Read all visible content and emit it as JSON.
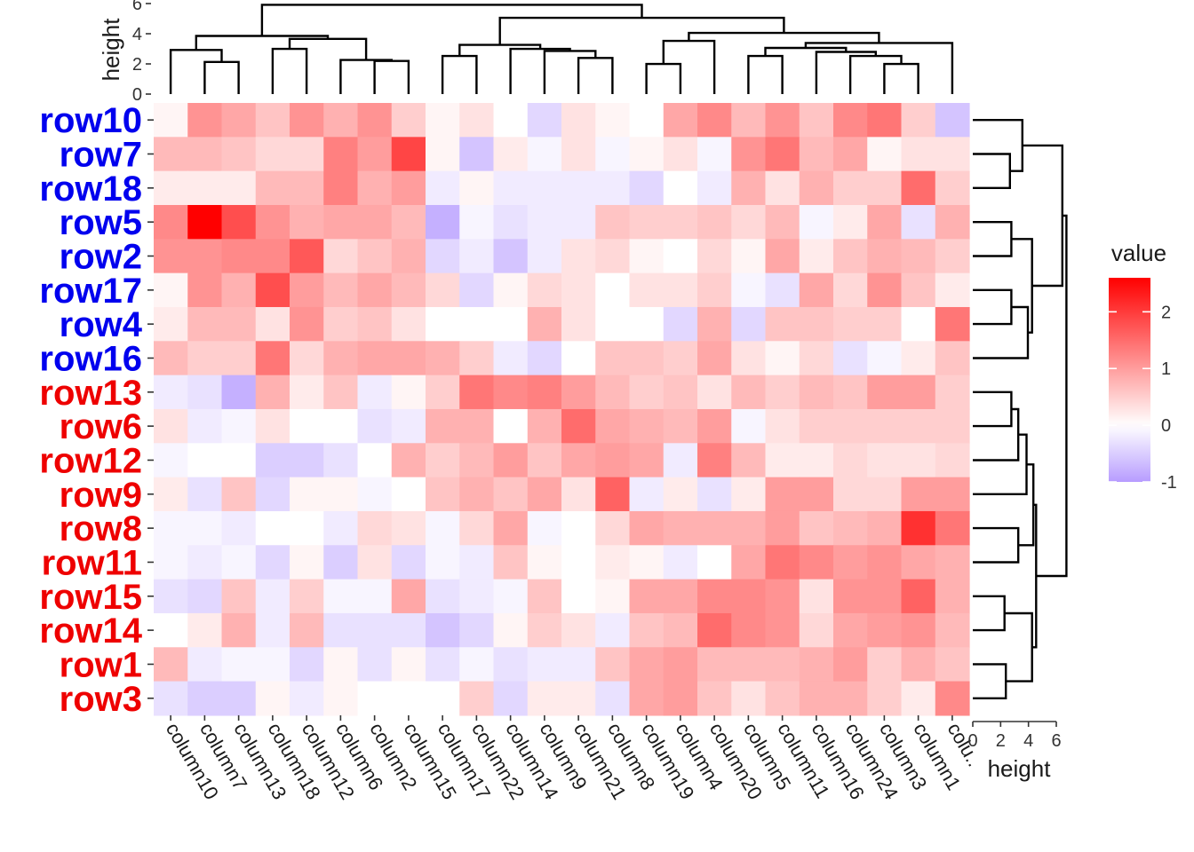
{
  "chart_data": {
    "type": "heatmap",
    "columns": [
      "column10",
      "column7",
      "column13",
      "column18",
      "column12",
      "column6",
      "column2",
      "column15",
      "column17",
      "column22",
      "column14",
      "column9",
      "column21",
      "column8",
      "column19",
      "column4",
      "column20",
      "column5",
      "column11",
      "column16",
      "column24",
      "column3",
      "column1",
      "colu.."
    ],
    "rows": [
      {
        "label": "row10",
        "group": "blue"
      },
      {
        "label": "row7",
        "group": "blue"
      },
      {
        "label": "row18",
        "group": "blue"
      },
      {
        "label": "row5",
        "group": "blue"
      },
      {
        "label": "row2",
        "group": "blue"
      },
      {
        "label": "row17",
        "group": "blue"
      },
      {
        "label": "row4",
        "group": "blue"
      },
      {
        "label": "row16",
        "group": "blue"
      },
      {
        "label": "row13",
        "group": "red"
      },
      {
        "label": "row6",
        "group": "red"
      },
      {
        "label": "row12",
        "group": "red"
      },
      {
        "label": "row9",
        "group": "red"
      },
      {
        "label": "row8",
        "group": "red"
      },
      {
        "label": "row11",
        "group": "red"
      },
      {
        "label": "row15",
        "group": "red"
      },
      {
        "label": "row14",
        "group": "red"
      },
      {
        "label": "row1",
        "group": "red"
      },
      {
        "label": "row3",
        "group": "red"
      }
    ],
    "values": [
      [
        0.1,
        1.1,
        0.9,
        0.6,
        1.1,
        0.8,
        1.1,
        0.5,
        0.1,
        0.3,
        0.0,
        -0.4,
        0.3,
        0.1,
        0.0,
        0.9,
        1.2,
        0.7,
        1.1,
        0.6,
        1.2,
        1.4,
        0.5,
        -0.6
      ],
      [
        0.7,
        0.7,
        0.6,
        0.4,
        0.4,
        1.3,
        1.0,
        1.9,
        0.1,
        -0.6,
        0.2,
        -0.1,
        0.3,
        -0.1,
        0.1,
        0.3,
        -0.1,
        1.1,
        1.4,
        0.7,
        0.9,
        0.1,
        0.3,
        0.3
      ],
      [
        0.2,
        0.2,
        0.2,
        0.7,
        0.7,
        1.3,
        0.8,
        1.0,
        -0.2,
        0.1,
        -0.2,
        -0.2,
        -0.2,
        -0.2,
        -0.4,
        0.0,
        -0.2,
        0.8,
        0.3,
        0.8,
        0.5,
        0.5,
        1.5,
        0.5
      ],
      [
        1.2,
        2.6,
        1.8,
        1.1,
        0.8,
        0.9,
        0.9,
        0.7,
        -0.8,
        -0.1,
        -0.3,
        -0.2,
        -0.2,
        0.6,
        0.5,
        0.5,
        0.6,
        0.4,
        0.7,
        -0.1,
        0.2,
        0.9,
        -0.3,
        0.8
      ],
      [
        1.1,
        1.1,
        1.2,
        1.2,
        1.7,
        0.4,
        0.6,
        0.8,
        -0.4,
        -0.2,
        -0.6,
        -0.2,
        0.3,
        0.4,
        0.1,
        0.0,
        0.4,
        0.1,
        0.9,
        0.2,
        0.6,
        0.8,
        0.7,
        0.5
      ],
      [
        0.1,
        1.1,
        0.8,
        1.8,
        1.0,
        0.7,
        0.9,
        0.7,
        0.4,
        -0.4,
        0.1,
        0.4,
        0.3,
        0.0,
        0.3,
        0.3,
        0.5,
        -0.1,
        -0.3,
        0.9,
        0.4,
        1.1,
        0.6,
        0.2
      ],
      [
        0.2,
        0.7,
        0.7,
        0.3,
        1.1,
        0.5,
        0.6,
        0.3,
        0.0,
        0.0,
        0.0,
        0.8,
        0.3,
        0.0,
        0.0,
        -0.4,
        0.8,
        -0.4,
        0.6,
        0.6,
        0.5,
        0.5,
        0.0,
        1.4
      ],
      [
        0.7,
        0.5,
        0.5,
        1.4,
        0.4,
        0.8,
        0.9,
        0.9,
        0.8,
        0.5,
        -0.2,
        -0.4,
        0.0,
        0.6,
        0.6,
        0.5,
        0.9,
        0.3,
        0.1,
        0.4,
        -0.3,
        -0.1,
        0.2,
        0.6
      ],
      [
        -0.2,
        -0.3,
        -0.8,
        0.8,
        0.2,
        0.6,
        -0.2,
        0.1,
        0.5,
        1.4,
        1.2,
        1.3,
        1.0,
        0.7,
        0.5,
        0.6,
        0.3,
        0.7,
        0.5,
        0.7,
        0.6,
        1.0,
        1.0,
        0.5
      ],
      [
        0.3,
        -0.2,
        -0.1,
        0.3,
        0.0,
        0.0,
        -0.3,
        -0.2,
        0.8,
        0.8,
        0.0,
        0.8,
        1.5,
        0.9,
        0.8,
        0.7,
        1.0,
        -0.1,
        0.3,
        0.5,
        0.5,
        0.5,
        0.5,
        0.5
      ],
      [
        -0.1,
        0.0,
        0.0,
        -0.5,
        -0.5,
        -0.3,
        0.0,
        0.8,
        0.5,
        0.7,
        1.0,
        0.6,
        0.9,
        1.0,
        0.9,
        -0.2,
        1.3,
        0.7,
        0.2,
        0.2,
        0.4,
        0.3,
        0.3,
        0.4
      ],
      [
        0.2,
        -0.3,
        0.6,
        -0.4,
        0.1,
        0.1,
        -0.1,
        0.0,
        0.6,
        0.8,
        0.6,
        0.9,
        0.3,
        1.6,
        -0.2,
        0.2,
        -0.3,
        0.2,
        1.0,
        1.0,
        0.4,
        0.4,
        1.0,
        1.0
      ],
      [
        -0.1,
        -0.1,
        -0.2,
        0.0,
        0.0,
        -0.2,
        0.4,
        0.3,
        -0.1,
        0.4,
        0.9,
        -0.1,
        0.0,
        0.4,
        0.9,
        0.8,
        0.8,
        0.8,
        1.0,
        0.6,
        0.7,
        0.8,
        2.1,
        1.4
      ],
      [
        -0.1,
        -0.2,
        -0.1,
        -0.4,
        0.1,
        -0.5,
        0.3,
        -0.4,
        -0.1,
        -0.2,
        0.6,
        0.1,
        0.0,
        0.2,
        0.1,
        -0.2,
        0.0,
        0.9,
        1.4,
        1.2,
        1.0,
        1.1,
        0.9,
        0.8
      ],
      [
        -0.3,
        -0.4,
        0.6,
        -0.2,
        0.5,
        -0.1,
        -0.1,
        0.9,
        -0.3,
        -0.2,
        -0.1,
        0.6,
        0.0,
        0.1,
        0.9,
        0.9,
        1.2,
        1.2,
        1.1,
        0.3,
        1.1,
        1.1,
        1.6,
        0.8
      ],
      [
        0.0,
        0.2,
        0.8,
        -0.2,
        0.7,
        -0.3,
        -0.3,
        -0.3,
        -0.6,
        -0.4,
        0.1,
        0.5,
        0.3,
        -0.2,
        0.6,
        0.7,
        1.5,
        1.2,
        1.1,
        0.4,
        0.9,
        1.0,
        1.1,
        0.7
      ],
      [
        0.7,
        -0.2,
        -0.1,
        -0.1,
        -0.4,
        0.1,
        -0.3,
        0.1,
        -0.3,
        -0.1,
        -0.3,
        -0.2,
        -0.2,
        0.6,
        0.9,
        1.0,
        0.7,
        0.7,
        0.7,
        0.8,
        1.0,
        0.5,
        0.8,
        0.6
      ],
      [
        -0.3,
        -0.5,
        -0.5,
        0.1,
        -0.2,
        0.1,
        0.0,
        0.0,
        0.0,
        0.5,
        -0.4,
        0.2,
        0.2,
        -0.3,
        0.9,
        1.0,
        0.6,
        0.3,
        0.6,
        0.8,
        0.8,
        0.5,
        0.2,
        1.2
      ]
    ],
    "row_label_colors": {
      "blue": "#0000ee",
      "red": "#ee0000"
    },
    "color_scale": {
      "low": "#b79cff",
      "mid": "#ffffff",
      "high": "#ff0000",
      "low_value": -1,
      "mid_value": 0,
      "high_value": 2.6
    },
    "legend": {
      "title": "value",
      "ticks": [
        2,
        1,
        0,
        -1
      ],
      "placement": "right"
    },
    "top_dendrogram_axis": {
      "title": "height",
      "ticks": [
        0,
        2,
        4,
        6
      ],
      "range": [
        0,
        6
      ]
    },
    "right_dendrogram_axis": {
      "title": "height",
      "ticks": [
        0,
        2,
        4,
        6
      ],
      "range": [
        0,
        6
      ]
    }
  }
}
